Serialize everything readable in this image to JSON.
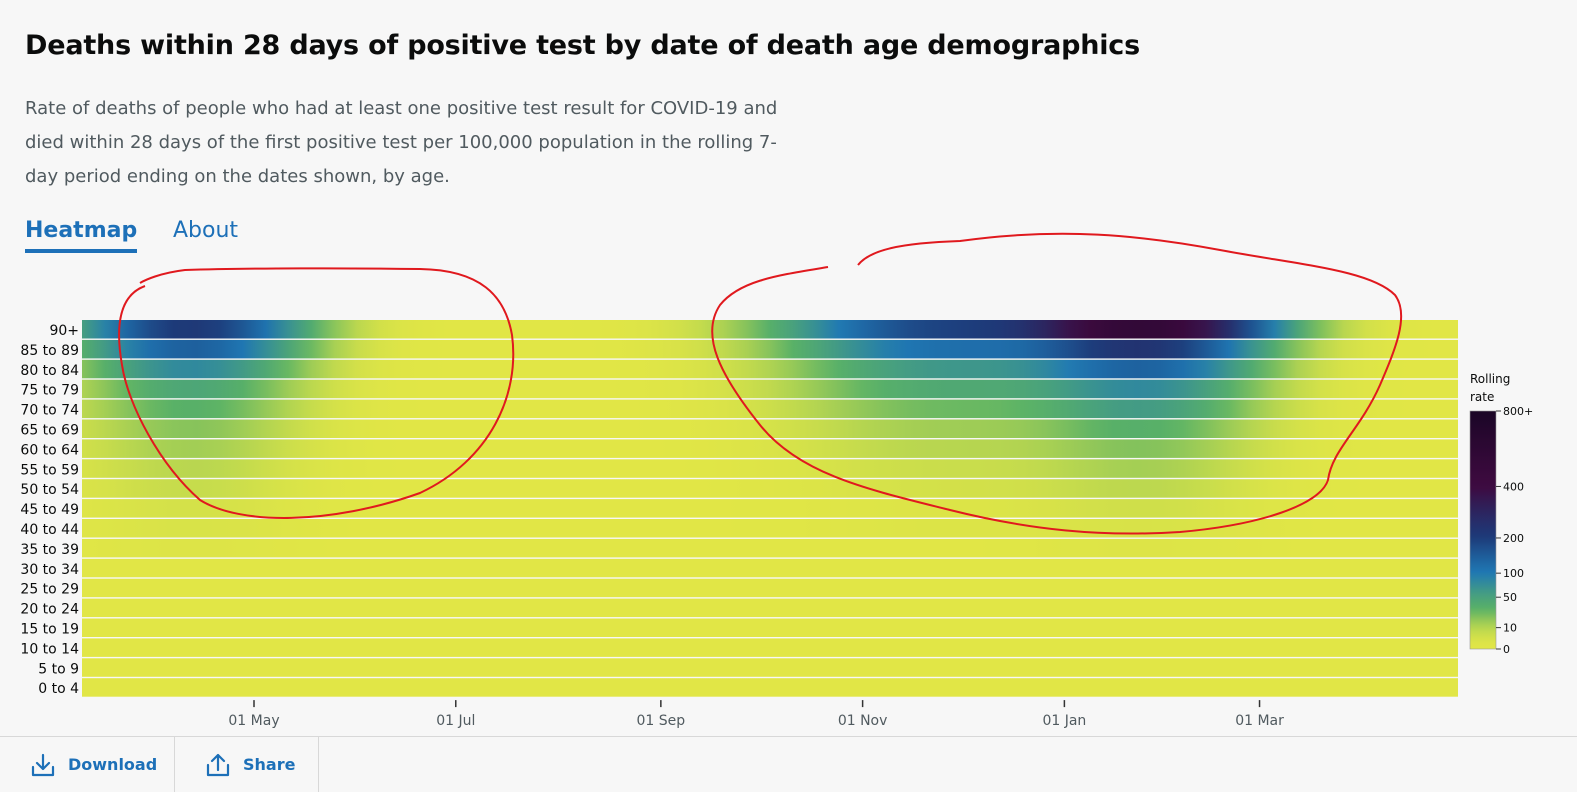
{
  "title": "Deaths within 28 days of positive test by date of death age demographics",
  "description": "Rate of deaths of people who had at least one positive test result for COVID-19 and died within 28 days of the first positive test per 100,000 population in the rolling 7-day period ending on the dates shown, by age.",
  "tabs": [
    {
      "label": "Heatmap",
      "active": true
    },
    {
      "label": "About",
      "active": false
    }
  ],
  "footer": {
    "download_label": "Download",
    "share_label": "Share",
    "download_icon": "download-icon",
    "share_icon": "share-icon"
  },
  "colors": {
    "link": "#1d70b8",
    "annotation": "#e0191e",
    "scale": [
      "#e1e646",
      "#5ab266",
      "#1f78b4",
      "#1d3b7a",
      "#3e0a40",
      "#1a0626"
    ]
  },
  "chart_data": {
    "type": "heatmap",
    "x_ticks": [
      "01 May",
      "01 Jul",
      "01 Sep",
      "01 Nov",
      "01 Jan",
      "01 Mar"
    ],
    "age_groups": [
      "90+",
      "85 to 89",
      "80 to 84",
      "75 to 79",
      "70 to 74",
      "65 to 69",
      "60 to 64",
      "55 to 59",
      "50 to 54",
      "45 to 49",
      "40 to 44",
      "35 to 39",
      "30 to 34",
      "25 to 29",
      "20 to 24",
      "15 to 19",
      "10 to 14",
      "5 to 9",
      "0 to 4"
    ],
    "x_range": [
      "2020-03-10",
      "2021-04-30"
    ],
    "x_units": "date",
    "wave_peaks": [
      {
        "date": "2020-04-12",
        "rates": [
          210,
          140,
          80,
          45,
          32,
          20,
          14,
          9,
          6,
          3,
          2,
          1,
          0,
          0,
          0,
          0,
          0,
          0,
          0
        ]
      },
      {
        "date": "2021-01-25",
        "rates": [
          520,
          220,
          130,
          75,
          55,
          32,
          20,
          13,
          8,
          4,
          2,
          1,
          0,
          0,
          0,
          0,
          0,
          0,
          0
        ]
      }
    ],
    "autumn_shoulder": {
      "date": "2020-11-25",
      "rates": [
        180,
        110,
        60,
        40,
        25,
        14,
        9,
        5,
        3,
        1,
        1,
        0,
        0,
        0,
        0,
        0,
        0,
        0,
        0
      ]
    },
    "legend": {
      "title_line1": "Rolling",
      "title_line2": "rate",
      "ticks": [
        "800+",
        "400",
        "200",
        "100",
        "50",
        "10",
        "0"
      ]
    }
  }
}
